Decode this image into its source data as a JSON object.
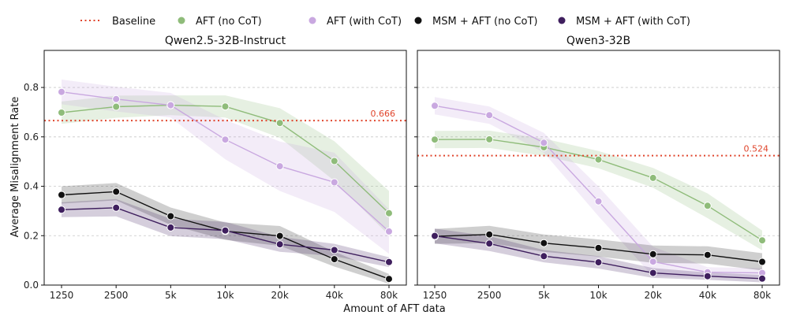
{
  "figure": {
    "xlabel": "Amount of AFT data",
    "ylabel": "Average Misalignment Rate"
  },
  "legend": [
    {
      "key": "baseline",
      "label": "Baseline",
      "color": "#e0452c",
      "style": "dotted"
    },
    {
      "key": "aft_no_cot",
      "label": "AFT (no CoT)",
      "color": "#8fbc7a",
      "style": "marker"
    },
    {
      "key": "aft_with_cot",
      "label": "AFT (with CoT)",
      "color": "#c9a8e0",
      "style": "marker"
    },
    {
      "key": "msm_no_cot",
      "label": "MSM + AFT (no CoT)",
      "color": "#111111",
      "style": "marker"
    },
    {
      "key": "msm_with_cot",
      "label": "MSM + AFT (with CoT)",
      "color": "#3f1f5e",
      "style": "marker"
    }
  ],
  "chart_data": [
    {
      "type": "line",
      "title": "Qwen2.5-32B-Instruct",
      "categories": [
        "1250",
        "2500",
        "5k",
        "10k",
        "20k",
        "40k",
        "80k"
      ],
      "ylim": [
        0,
        0.95
      ],
      "yticks": [
        "0.0",
        "0.2",
        "0.4",
        "0.6",
        "0.8"
      ],
      "grid": "horizontal",
      "baseline": {
        "value": 0.666,
        "label": "0.666"
      },
      "series": [
        {
          "key": "aft_no_cot",
          "color": "#8fbc7a",
          "values": [
            0.698,
            0.722,
            0.728,
            0.723,
            0.656,
            0.502,
            0.291
          ],
          "band": [
            0.045,
            0.045,
            0.04,
            0.045,
            0.06,
            0.08,
            0.09
          ]
        },
        {
          "key": "aft_with_cot",
          "color": "#c9a8e0",
          "values": [
            0.782,
            0.753,
            0.728,
            0.589,
            0.481,
            0.416,
            0.217
          ],
          "band": [
            0.05,
            0.05,
            0.05,
            0.08,
            0.1,
            0.12,
            0.09
          ]
        },
        {
          "key": "msm_no_cot",
          "color": "#111111",
          "values": [
            0.365,
            0.378,
            0.279,
            0.218,
            0.199,
            0.105,
            0.025
          ],
          "band": [
            0.035,
            0.035,
            0.035,
            0.035,
            0.04,
            0.03,
            0.02
          ]
        },
        {
          "key": "msm_with_cot",
          "color": "#3f1f5e",
          "values": [
            0.305,
            0.313,
            0.233,
            0.221,
            0.165,
            0.142,
            0.093
          ],
          "band": [
            0.03,
            0.035,
            0.035,
            0.035,
            0.03,
            0.025,
            0.02
          ]
        }
      ]
    },
    {
      "type": "line",
      "title": "Qwen3-32B",
      "categories": [
        "1250",
        "2500",
        "5k",
        "10k",
        "20k",
        "40k",
        "80k"
      ],
      "ylim": [
        0,
        0.95
      ],
      "yticks": [
        "0.0",
        "0.2",
        "0.4",
        "0.6",
        "0.8"
      ],
      "grid": "horizontal",
      "baseline": {
        "value": 0.524,
        "label": "0.524"
      },
      "series": [
        {
          "key": "aft_no_cot",
          "color": "#8fbc7a",
          "values": [
            0.589,
            0.59,
            0.558,
            0.508,
            0.434,
            0.321,
            0.181
          ],
          "band": [
            0.035,
            0.035,
            0.035,
            0.035,
            0.04,
            0.05,
            0.04
          ]
        },
        {
          "key": "aft_with_cot",
          "color": "#c9a8e0",
          "values": [
            0.726,
            0.688,
            0.576,
            0.339,
            0.095,
            0.052,
            0.049
          ],
          "band": [
            0.035,
            0.035,
            0.04,
            0.06,
            0.06,
            0.02,
            0.02
          ]
        },
        {
          "key": "msm_no_cot",
          "color": "#111111",
          "values": [
            0.197,
            0.205,
            0.17,
            0.15,
            0.125,
            0.122,
            0.094
          ],
          "band": [
            0.03,
            0.035,
            0.035,
            0.035,
            0.035,
            0.035,
            0.035
          ]
        },
        {
          "key": "msm_with_cot",
          "color": "#3f1f5e",
          "values": [
            0.199,
            0.168,
            0.117,
            0.092,
            0.049,
            0.036,
            0.026
          ],
          "band": [
            0.03,
            0.03,
            0.025,
            0.025,
            0.02,
            0.015,
            0.015
          ]
        }
      ]
    }
  ]
}
